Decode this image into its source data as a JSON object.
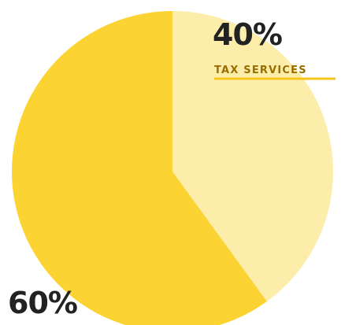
{
  "chart_data": {
    "type": "pie",
    "slices": [
      {
        "name": "",
        "value": 60,
        "label": "60%",
        "color": "#FBD332"
      },
      {
        "name": "TAX SERVICES",
        "value": 40,
        "label": "40%",
        "color": "#FDEDAA"
      }
    ],
    "title": "",
    "legend_placement": "top-right",
    "legend_underline_color": "#F5C518"
  }
}
